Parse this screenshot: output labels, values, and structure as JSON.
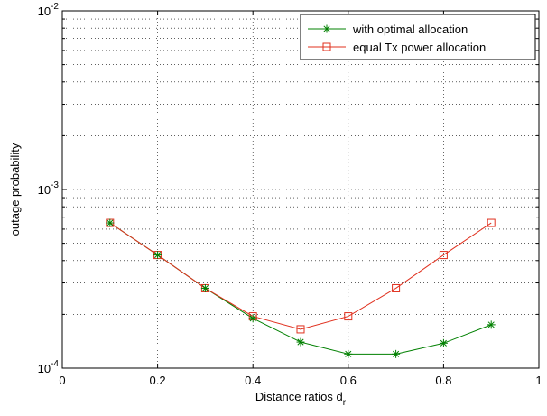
{
  "chart_data": {
    "type": "line",
    "xlabel": "Distance ratios d",
    "xlabel_subscript": "r",
    "ylabel": "outage probability",
    "xlim": [
      0,
      1
    ],
    "ylim": [
      0.0001,
      0.01
    ],
    "yscale": "log",
    "grid": true,
    "legend_position": "top-right",
    "x": [
      0.1,
      0.2,
      0.3,
      0.4,
      0.5,
      0.6,
      0.7,
      0.8,
      0.9
    ],
    "xticks": [
      "0",
      "0.2",
      "0.4",
      "0.6",
      "0.8",
      "1"
    ],
    "yticks": [
      {
        "base": "10",
        "exp": "-4"
      },
      {
        "base": "10",
        "exp": "-3"
      },
      {
        "base": "10",
        "exp": "-2"
      }
    ],
    "series": [
      {
        "name": "with optimal allocation",
        "color": "#008000",
        "marker": "star",
        "values": [
          0.00065,
          0.00043,
          0.00028,
          0.00019,
          0.00014,
          0.00012,
          0.00012,
          0.000138,
          0.000175
        ]
      },
      {
        "name": "equal Tx power allocation",
        "color": "#e0301e",
        "marker": "square",
        "values": [
          0.00065,
          0.00043,
          0.00028,
          0.000195,
          0.000165,
          0.000195,
          0.00028,
          0.00043,
          0.00065
        ]
      }
    ]
  }
}
